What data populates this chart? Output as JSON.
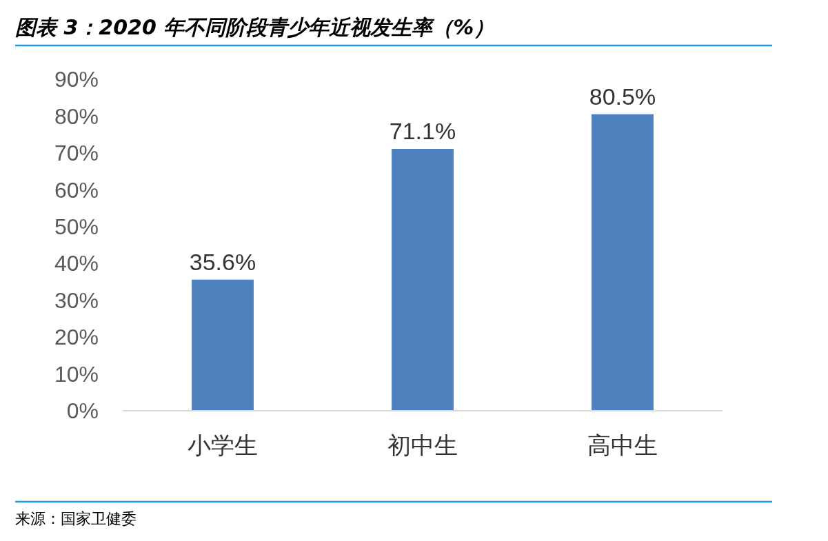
{
  "chart_data": {
    "type": "bar",
    "title": "图表 3：2020 年不同阶段青少年近视发生率（%）",
    "categories": [
      "小学生",
      "初中生",
      "高中生"
    ],
    "values": [
      35.6,
      71.1,
      80.5
    ],
    "value_labels": [
      "35.6%",
      "71.1%",
      "80.5%"
    ],
    "color": "#4f81bd",
    "ylim": [
      0,
      90
    ],
    "yticks": [
      {
        "value": 0,
        "label": "0%"
      },
      {
        "value": 10,
        "label": "10%"
      },
      {
        "value": 20,
        "label": "20%"
      },
      {
        "value": 30,
        "label": "30%"
      },
      {
        "value": 40,
        "label": "40%"
      },
      {
        "value": 50,
        "label": "50%"
      },
      {
        "value": 60,
        "label": "60%"
      },
      {
        "value": 70,
        "label": "70%"
      },
      {
        "value": 80,
        "label": "80%"
      },
      {
        "value": 90,
        "label": "90%"
      }
    ],
    "grid": false,
    "annotations": [
      "来源：国家卫健委"
    ]
  }
}
